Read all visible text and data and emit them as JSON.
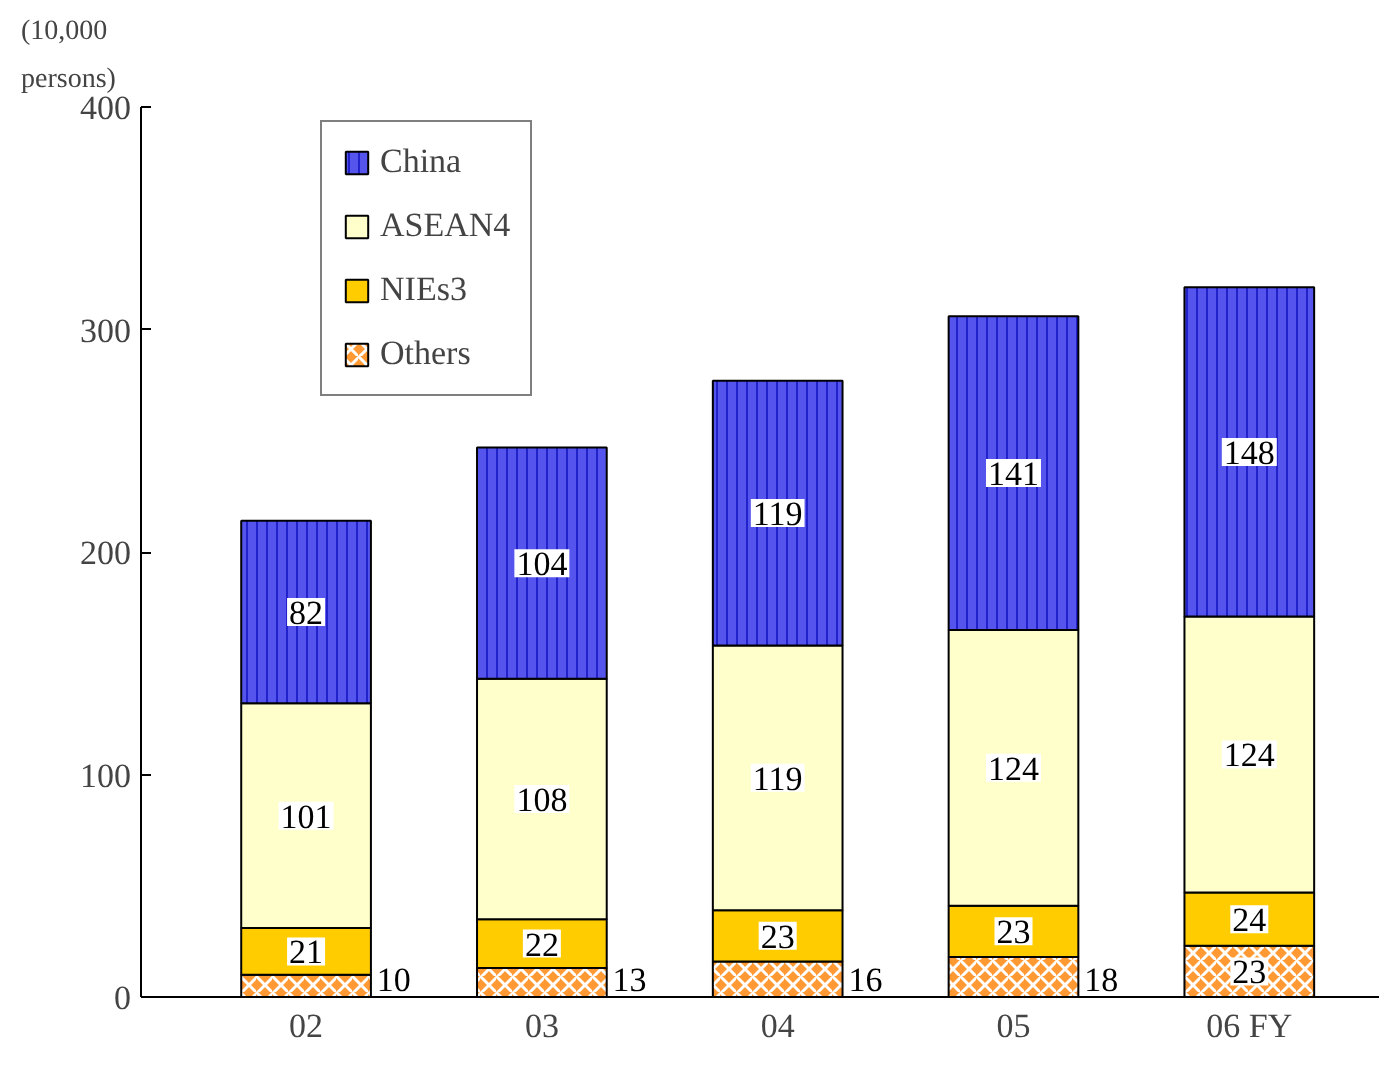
{
  "chart_data": {
    "type": "bar",
    "stacked": true,
    "ylabel": "(10,000\npersons)",
    "categories": [
      "02",
      "03",
      "04",
      "05",
      "06 FY"
    ],
    "series": [
      {
        "name": "Others",
        "color": "#ff9933",
        "values": [
          10,
          13,
          16,
          18,
          23
        ]
      },
      {
        "name": "NIEs3",
        "color": "#ffcc00",
        "values": [
          21,
          22,
          23,
          23,
          24
        ]
      },
      {
        "name": "ASEAN4",
        "color": "#ffffcc",
        "values": [
          101,
          108,
          119,
          124,
          124
        ]
      },
      {
        "name": "China",
        "color": "#5555ee",
        "values": [
          82,
          104,
          119,
          141,
          148
        ]
      }
    ],
    "ylim": [
      0,
      400
    ],
    "yticks": [
      0,
      100,
      200,
      300,
      400
    ],
    "grid": false,
    "legend": "top left",
    "data_labels": true
  }
}
